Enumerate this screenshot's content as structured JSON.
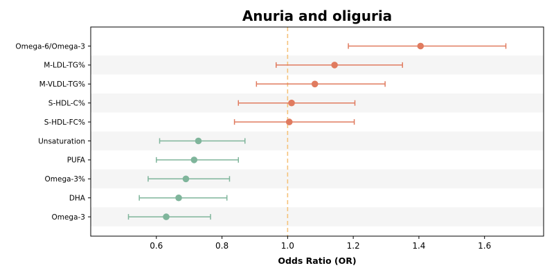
{
  "chart_data": {
    "type": "scatter",
    "subtype": "forest-plot",
    "title": "Anuria and oliguria",
    "xlabel": "Odds Ratio (OR)",
    "ylabel": "",
    "xlim": [
      0.4,
      1.78
    ],
    "xticks": [
      0.6,
      0.8,
      1.0,
      1.2,
      1.4,
      1.6
    ],
    "xtick_labels": [
      "0.6",
      "0.8",
      "1.0",
      "1.2",
      "1.4",
      "1.6"
    ],
    "reference_line": 1.0,
    "reference_line_color": "#f5c27a",
    "grid": false,
    "alternating_row_shading": true,
    "row_shade_color": "#f5f5f5",
    "colors": {
      "increased": "#e07b5f",
      "decreased": "#7fb59b"
    },
    "rows": [
      {
        "label": "Omega-6/Omega-3",
        "or": 1.405,
        "lower": 1.185,
        "upper": 1.665,
        "group": "increased"
      },
      {
        "label": "M-LDL-TG%",
        "or": 1.143,
        "lower": 0.965,
        "upper": 1.35,
        "group": "increased"
      },
      {
        "label": "M-VLDL-TG%",
        "or": 1.083,
        "lower": 0.905,
        "upper": 1.297,
        "group": "increased"
      },
      {
        "label": "S-HDL-C%",
        "or": 1.012,
        "lower": 0.85,
        "upper": 1.205,
        "group": "increased"
      },
      {
        "label": "S-HDL-FC%",
        "or": 1.005,
        "lower": 0.838,
        "upper": 1.203,
        "group": "increased"
      },
      {
        "label": "Unsaturation",
        "or": 0.728,
        "lower": 0.61,
        "upper": 0.87,
        "group": "decreased"
      },
      {
        "label": "PUFA",
        "or": 0.715,
        "lower": 0.6,
        "upper": 0.85,
        "group": "decreased"
      },
      {
        "label": "Omega-3%",
        "or": 0.69,
        "lower": 0.575,
        "upper": 0.823,
        "group": "decreased"
      },
      {
        "label": "DHA",
        "or": 0.668,
        "lower": 0.548,
        "upper": 0.815,
        "group": "decreased"
      },
      {
        "label": "Omega-3",
        "or": 0.63,
        "lower": 0.515,
        "upper": 0.765,
        "group": "decreased"
      }
    ]
  }
}
